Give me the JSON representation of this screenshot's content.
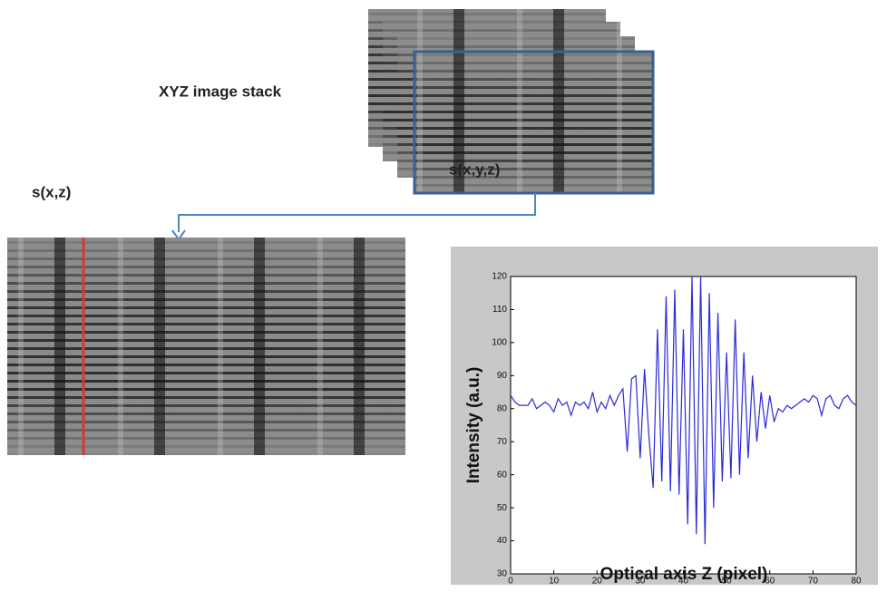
{
  "labels": {
    "stack": "XYZ image stack",
    "voxel": "s(x,y,z)",
    "slice": "s(x,z)"
  },
  "chart_data": {
    "type": "line",
    "xlabel": "Optical axis Z (pixel)",
    "ylabel": "Intensity (a.u.)",
    "xlim": [
      0,
      80
    ],
    "ylim": [
      30,
      120
    ],
    "xticks": [
      0,
      10,
      20,
      30,
      40,
      50,
      60,
      70,
      80
    ],
    "yticks": [
      30,
      40,
      50,
      60,
      70,
      80,
      90,
      100,
      110,
      120
    ],
    "grid": false,
    "x": [
      0,
      1,
      2,
      3,
      4,
      5,
      6,
      7,
      8,
      9,
      10,
      11,
      12,
      13,
      14,
      15,
      16,
      17,
      18,
      19,
      20,
      21,
      22,
      23,
      24,
      25,
      26,
      27,
      28,
      29,
      30,
      31,
      32,
      33,
      34,
      35,
      36,
      37,
      38,
      39,
      40,
      41,
      42,
      43,
      44,
      45,
      46,
      47,
      48,
      49,
      50,
      51,
      52,
      53,
      54,
      55,
      56,
      57,
      58,
      59,
      60,
      61,
      62,
      63,
      64,
      65,
      66,
      67,
      68,
      69,
      70,
      71,
      72,
      73,
      74,
      75,
      76,
      77,
      78,
      79,
      80
    ],
    "series": [
      {
        "color": "#2b2bd6",
        "values": [
          84,
          82,
          81,
          81,
          81,
          83,
          80,
          81,
          82,
          81,
          79,
          83,
          81,
          82,
          78,
          82,
          81,
          82,
          80,
          85,
          79,
          82,
          80,
          84,
          81,
          84,
          86,
          67,
          89,
          90,
          65,
          92,
          72,
          56,
          104,
          58,
          114,
          55,
          116,
          54,
          104,
          45,
          120,
          42,
          120,
          39,
          115,
          50,
          109,
          58,
          97,
          59,
          107,
          60,
          97,
          65,
          90,
          70,
          85,
          74,
          84,
          76,
          80,
          79,
          81,
          80,
          81,
          82,
          83,
          82,
          84,
          83,
          78,
          83,
          84,
          81,
          80,
          83,
          84,
          82,
          81
        ]
      }
    ]
  }
}
